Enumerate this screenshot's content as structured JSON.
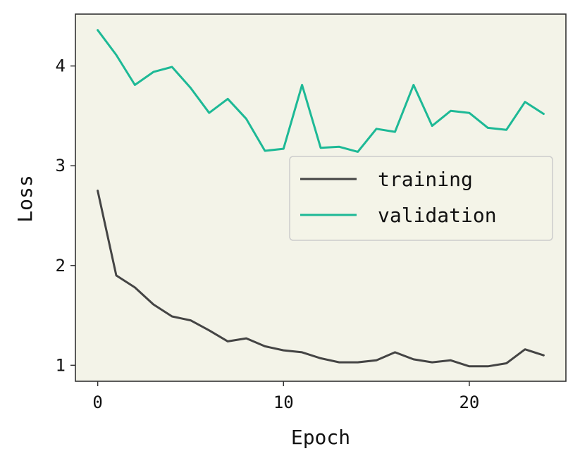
{
  "chart_data": {
    "type": "line",
    "xlabel": "Epoch",
    "ylabel": "Loss",
    "xlim": [
      -1.2,
      25.2
    ],
    "ylim": [
      0.84,
      4.52
    ],
    "xticks": [
      0,
      10,
      20
    ],
    "yticks": [
      1,
      2,
      3,
      4
    ],
    "grid": false,
    "legend_position": "center-right",
    "plot_background": "#f3f3e8",
    "x": [
      0,
      1,
      2,
      3,
      4,
      5,
      6,
      7,
      8,
      9,
      10,
      11,
      12,
      13,
      14,
      15,
      16,
      17,
      18,
      19,
      20,
      21,
      22,
      23,
      24
    ],
    "series": [
      {
        "name": "training",
        "color": "#444444",
        "values": [
          2.75,
          1.9,
          1.78,
          1.61,
          1.49,
          1.45,
          1.35,
          1.24,
          1.27,
          1.19,
          1.15,
          1.13,
          1.07,
          1.03,
          1.03,
          1.05,
          1.13,
          1.06,
          1.03,
          1.05,
          0.99,
          0.99,
          1.02,
          1.16,
          1.1
        ]
      },
      {
        "name": "validation",
        "color": "#1db996",
        "values": [
          4.36,
          4.11,
          3.81,
          3.94,
          3.99,
          3.78,
          3.53,
          3.67,
          3.47,
          3.15,
          3.17,
          3.81,
          3.18,
          3.19,
          3.14,
          3.37,
          3.34,
          3.81,
          3.4,
          3.55,
          3.53,
          3.38,
          3.36,
          3.64,
          3.52
        ]
      }
    ]
  }
}
